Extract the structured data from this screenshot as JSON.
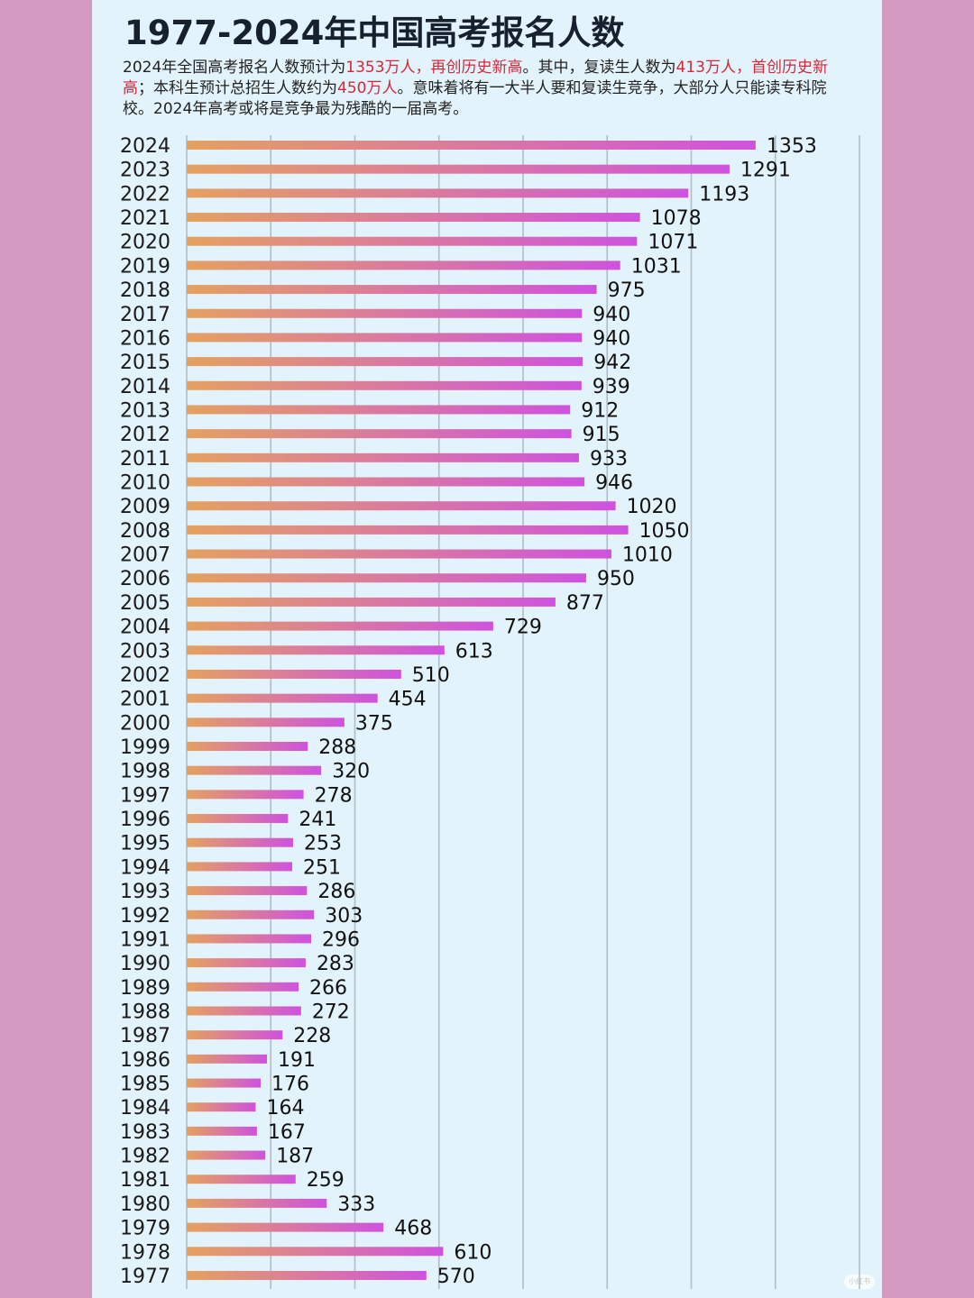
{
  "header": {
    "title": "1977-2024年中国高考报名人数",
    "subtitle_parts": [
      {
        "text": "2024年全国高考报名人数预计为",
        "highlight": false
      },
      {
        "text": "1353万人，再创历史新高",
        "highlight": true
      },
      {
        "text": "。其中，复读生人数为",
        "highlight": false
      },
      {
        "text": "413万人，首创历史新高",
        "highlight": true
      },
      {
        "text": "；本科生预计总招生人数约为",
        "highlight": false
      },
      {
        "text": "450万人",
        "highlight": true
      },
      {
        "text": "。意味着将有一大半人要和复读生竞争，大部分人只能读专科院校。2024年高考或将是竞争最为残酷的一届高考。",
        "highlight": false
      }
    ]
  },
  "colors": {
    "background": "#d59ac2",
    "card": "#e3f3fb",
    "bar_start": "#e5a15f",
    "bar_end": "#cf52df",
    "highlight": "#d4283a",
    "grid": "#b3bcc4"
  },
  "chart_data": {
    "type": "bar",
    "orientation": "horizontal",
    "title": "1977-2024年中国高考报名人数",
    "unit": "万人",
    "categories": [
      "2024",
      "2023",
      "2022",
      "2021",
      "2020",
      "2019",
      "2018",
      "2017",
      "2016",
      "2015",
      "2014",
      "2013",
      "2012",
      "2011",
      "2010",
      "2009",
      "2008",
      "2007",
      "2006",
      "2005",
      "2004",
      "2003",
      "2002",
      "2001",
      "2000",
      "1999",
      "1998",
      "1997",
      "1996",
      "1995",
      "1994",
      "1993",
      "1992",
      "1991",
      "1990",
      "1989",
      "1988",
      "1987",
      "1986",
      "1985",
      "1984",
      "1983",
      "1982",
      "1981",
      "1980",
      "1979",
      "1978",
      "1977"
    ],
    "values": [
      1353,
      1291,
      1193,
      1078,
      1071,
      1031,
      975,
      940,
      940,
      942,
      939,
      912,
      915,
      933,
      946,
      1020,
      1050,
      1010,
      950,
      877,
      729,
      613,
      510,
      454,
      375,
      288,
      320,
      278,
      241,
      253,
      251,
      286,
      303,
      296,
      283,
      266,
      272,
      228,
      191,
      176,
      164,
      167,
      187,
      259,
      333,
      468,
      610,
      570
    ],
    "xlim": [
      0,
      1600
    ],
    "grid": true,
    "gridlines_at": [
      0,
      200,
      400,
      600,
      800,
      1000,
      1200,
      1400,
      1600
    ],
    "xlabel": "",
    "ylabel": "",
    "legend": "none"
  },
  "watermark": "小红书"
}
